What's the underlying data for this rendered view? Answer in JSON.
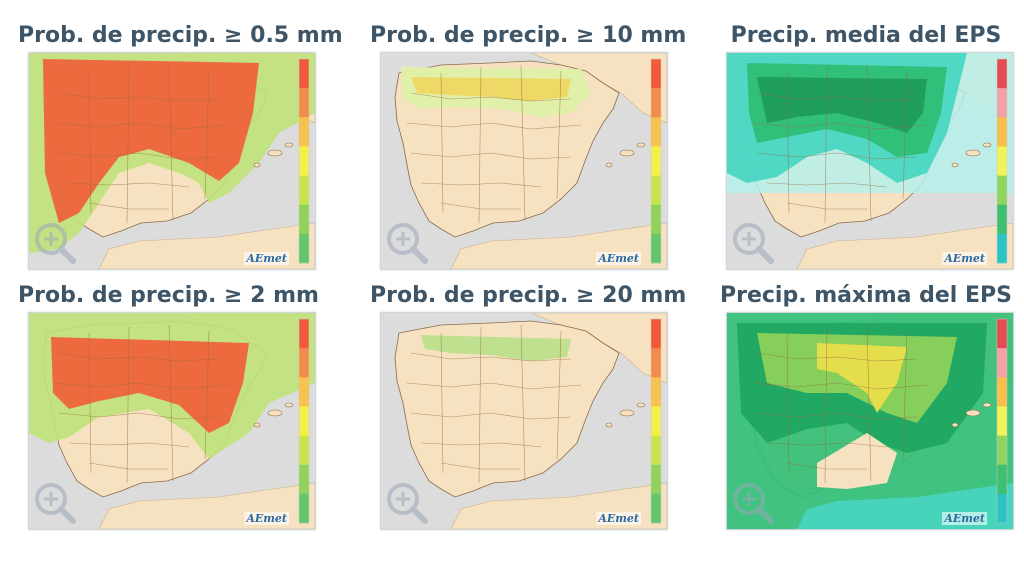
{
  "panels": [
    {
      "title": "Prob. de precip.  ≥ 0.5 mm",
      "logo": "AEmet",
      "colors": {
        "fill1": "#f0603a",
        "fill2": "#f6a14c",
        "fill3": "#bfe27a",
        "fill4": "#e9f2a2",
        "legend": [
          "#f25a3a",
          "#f58b4a",
          "#f8c14e",
          "#f3f04a",
          "#c8e64c",
          "#8fd35a",
          "#63c76a"
        ]
      }
    },
    {
      "title": "Prob. de precip.  ≥ 10 mm",
      "logo": "AEmet",
      "colors": {
        "fill1": "#f0d35a",
        "fill2": "#bfe27a",
        "fill3": "#dff0a8",
        "fill4": "#f3f8d6",
        "legend": [
          "#f25a3a",
          "#f58b4a",
          "#f8c14e",
          "#f3f04a",
          "#c8e64c",
          "#8fd35a",
          "#63c76a"
        ]
      }
    },
    {
      "title": "Precip. media del EPS",
      "logo": "AEmet",
      "colors": {
        "fill1": "#1e9a5a",
        "fill2": "#2fbf76",
        "fill3": "#49d6c2",
        "fill4": "#b6f0ea",
        "legend": [
          "#e84a52",
          "#f2a1a6",
          "#f6c04a",
          "#f1f35a",
          "#8ed45e",
          "#3fbf70",
          "#2bc3c4"
        ]
      }
    },
    {
      "title": "Prob. de precip.  ≥ 2 mm",
      "logo": "AEmet",
      "colors": {
        "fill1": "#f0603a",
        "fill2": "#f6a14c",
        "fill3": "#bfe27a",
        "fill4": "#e9f2a2",
        "legend": [
          "#f25a3a",
          "#f58b4a",
          "#f8c14e",
          "#f3f04a",
          "#c8e64c",
          "#8fd35a",
          "#63c76a"
        ]
      }
    },
    {
      "title": "Prob. de precip.  ≥ 20 mm",
      "logo": "AEmet",
      "colors": {
        "fill1": "#b5df86",
        "fill2": "#dff0a8",
        "fill3": "#eef7cb",
        "fill4": "#f8fbe8",
        "legend": [
          "#f25a3a",
          "#f58b4a",
          "#f8c14e",
          "#f3f04a",
          "#c8e64c",
          "#8fd35a",
          "#63c76a"
        ]
      }
    },
    {
      "title": "Precip. máxima del EPS",
      "logo": "AEmet",
      "colors": {
        "fill1": "#f0df4a",
        "fill2": "#8fd35a",
        "fill3": "#1ea55f",
        "fill4": "#49d6c2",
        "legend": [
          "#e84a52",
          "#f2a1a6",
          "#f6c04a",
          "#f1f35a",
          "#8ed45e",
          "#3fbf70",
          "#2bc3c4"
        ]
      }
    }
  ]
}
